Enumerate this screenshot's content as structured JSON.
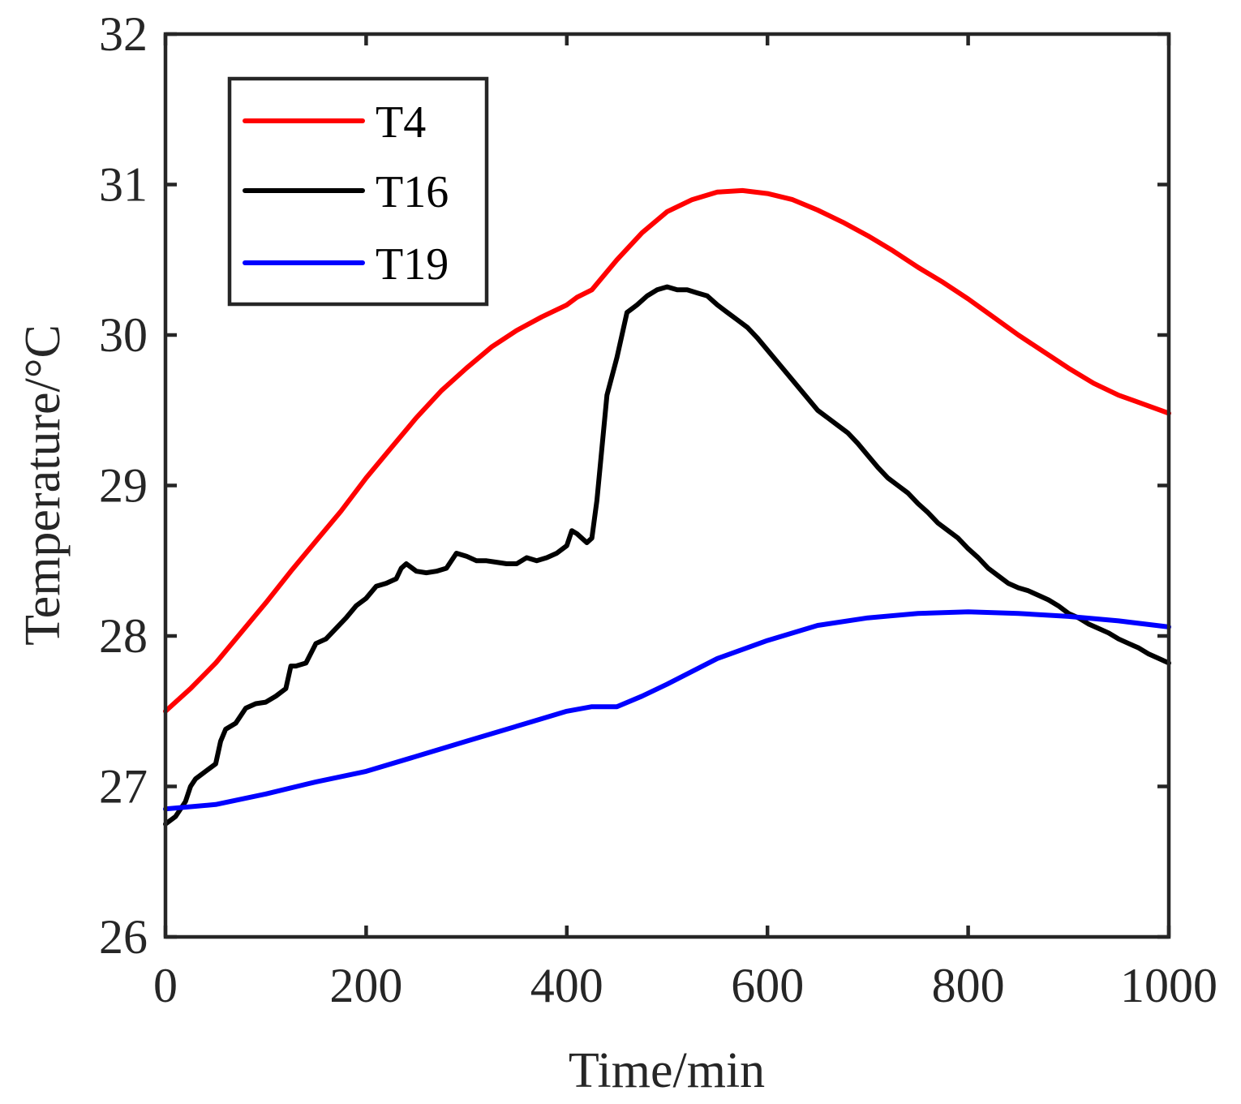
{
  "chart_data": {
    "type": "line",
    "title": "",
    "xlabel": "Time/min",
    "ylabel": "Temperature/°C",
    "xlim": [
      0,
      1000
    ],
    "ylim": [
      26,
      32
    ],
    "xticks": [
      0,
      200,
      400,
      600,
      800,
      1000
    ],
    "yticks": [
      26,
      27,
      28,
      29,
      30,
      31,
      32
    ],
    "xtick_labels": [
      "0",
      "200",
      "400",
      "600",
      "800",
      "1000"
    ],
    "ytick_labels": [
      "26",
      "27",
      "28",
      "29",
      "30",
      "31",
      "32"
    ],
    "grid": false,
    "legend_position": "top-left",
    "series": [
      {
        "name": "T4",
        "color": "#ff0000",
        "x": [
          0,
          25,
          50,
          75,
          100,
          125,
          150,
          175,
          200,
          225,
          250,
          275,
          300,
          325,
          350,
          375,
          400,
          410,
          425,
          450,
          475,
          500,
          525,
          550,
          575,
          600,
          625,
          650,
          675,
          700,
          725,
          750,
          775,
          800,
          825,
          850,
          875,
          900,
          925,
          950,
          975,
          1000
        ],
        "y": [
          27.5,
          27.65,
          27.82,
          28.02,
          28.22,
          28.43,
          28.63,
          28.83,
          29.05,
          29.25,
          29.45,
          29.63,
          29.78,
          29.92,
          30.03,
          30.12,
          30.2,
          30.25,
          30.3,
          30.5,
          30.68,
          30.82,
          30.9,
          30.95,
          30.96,
          30.94,
          30.9,
          30.83,
          30.75,
          30.66,
          30.56,
          30.45,
          30.35,
          30.24,
          30.12,
          30.0,
          29.89,
          29.78,
          29.68,
          29.6,
          29.54,
          29.48
        ]
      },
      {
        "name": "T16",
        "color": "#000000",
        "x": [
          0,
          10,
          20,
          25,
          30,
          40,
          50,
          55,
          60,
          70,
          80,
          90,
          100,
          110,
          120,
          125,
          130,
          140,
          150,
          160,
          170,
          180,
          190,
          200,
          210,
          220,
          230,
          235,
          240,
          250,
          260,
          270,
          280,
          290,
          300,
          310,
          320,
          330,
          340,
          350,
          360,
          370,
          380,
          390,
          400,
          405,
          410,
          420,
          425,
          430,
          440,
          450,
          460,
          470,
          480,
          490,
          500,
          510,
          520,
          530,
          540,
          550,
          560,
          570,
          580,
          590,
          600,
          610,
          620,
          630,
          640,
          650,
          660,
          670,
          680,
          690,
          700,
          710,
          720,
          730,
          740,
          750,
          760,
          770,
          780,
          790,
          800,
          810,
          820,
          830,
          840,
          850,
          860,
          870,
          880,
          890,
          900,
          910,
          920,
          930,
          940,
          950,
          960,
          970,
          980,
          990,
          1000
        ],
        "y": [
          26.75,
          26.8,
          26.9,
          27.0,
          27.05,
          27.1,
          27.15,
          27.3,
          27.38,
          27.42,
          27.52,
          27.55,
          27.56,
          27.6,
          27.65,
          27.8,
          27.8,
          27.82,
          27.95,
          27.98,
          28.05,
          28.12,
          28.2,
          28.25,
          28.33,
          28.35,
          28.38,
          28.45,
          28.48,
          28.43,
          28.42,
          28.43,
          28.45,
          28.55,
          28.53,
          28.5,
          28.5,
          28.49,
          28.48,
          28.48,
          28.52,
          28.5,
          28.52,
          28.55,
          28.6,
          28.7,
          28.68,
          28.62,
          28.65,
          28.9,
          29.6,
          29.85,
          30.15,
          30.2,
          30.26,
          30.3,
          30.32,
          30.3,
          30.3,
          30.28,
          30.26,
          30.2,
          30.15,
          30.1,
          30.05,
          29.98,
          29.9,
          29.82,
          29.74,
          29.66,
          29.58,
          29.5,
          29.45,
          29.4,
          29.35,
          29.28,
          29.2,
          29.12,
          29.05,
          29.0,
          28.95,
          28.88,
          28.82,
          28.75,
          28.7,
          28.65,
          28.58,
          28.52,
          28.45,
          28.4,
          28.35,
          28.32,
          28.3,
          28.27,
          28.24,
          28.2,
          28.15,
          28.12,
          28.08,
          28.05,
          28.02,
          27.98,
          27.95,
          27.92,
          27.88,
          27.85,
          27.82
        ]
      },
      {
        "name": "T19",
        "color": "#0000ff",
        "x": [
          0,
          50,
          100,
          150,
          200,
          250,
          300,
          350,
          400,
          425,
          450,
          475,
          500,
          550,
          600,
          650,
          700,
          750,
          800,
          850,
          900,
          950,
          1000
        ],
        "y": [
          26.85,
          26.88,
          26.95,
          27.03,
          27.1,
          27.2,
          27.3,
          27.4,
          27.5,
          27.53,
          27.53,
          27.6,
          27.68,
          27.85,
          27.97,
          28.07,
          28.12,
          28.15,
          28.16,
          28.15,
          28.13,
          28.1,
          28.06
        ]
      }
    ]
  }
}
